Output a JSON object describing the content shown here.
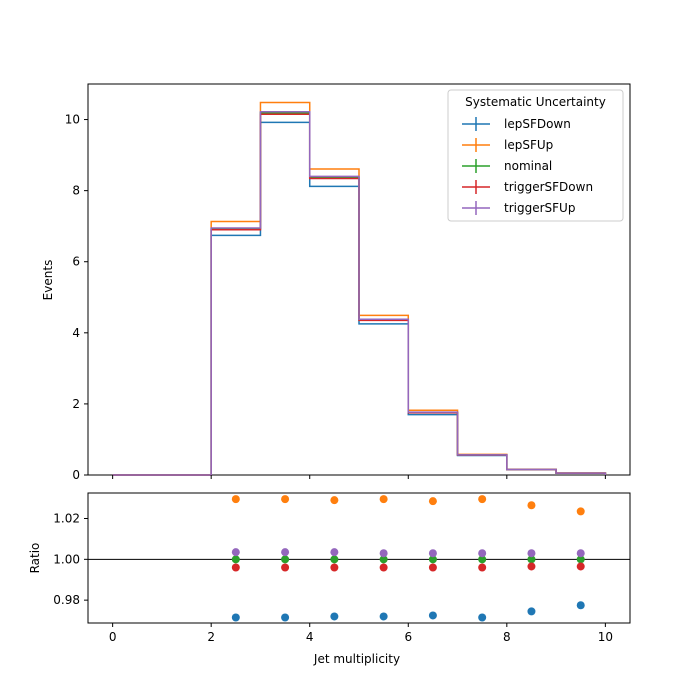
{
  "chart_data": [
    {
      "type": "line",
      "panel": "main",
      "ylabel": "Events",
      "xlim": [
        -0.5,
        10.5
      ],
      "ylim": [
        0,
        11
      ],
      "yticks": [
        0,
        2,
        4,
        6,
        8,
        10
      ],
      "bin_edges": [
        0,
        1,
        2,
        3,
        4,
        5,
        6,
        7,
        8,
        9,
        10
      ],
      "legend": {
        "title": "Systematic Uncertainty",
        "placement": "top-right"
      },
      "series": [
        {
          "name": "lepSFDown",
          "color": "#1f77b4",
          "values": [
            0,
            0,
            6.74,
            9.92,
            8.12,
            4.25,
            1.7,
            0.55,
            0.15,
            0.05
          ]
        },
        {
          "name": "lepSFUp",
          "color": "#ff7f0e",
          "values": [
            0,
            0,
            7.13,
            10.48,
            8.61,
            4.49,
            1.82,
            0.58,
            0.16,
            0.055
          ]
        },
        {
          "name": "nominal",
          "color": "#2ca02c",
          "values": [
            0,
            0,
            6.93,
            10.19,
            8.37,
            4.37,
            1.76,
            0.565,
            0.155,
            0.052
          ]
        },
        {
          "name": "triggerSFDown",
          "color": "#d62728",
          "values": [
            0,
            0,
            6.9,
            10.15,
            8.34,
            4.35,
            1.75,
            0.563,
            0.154,
            0.052
          ]
        },
        {
          "name": "triggerSFUp",
          "color": "#9467bd",
          "values": [
            0,
            0,
            6.95,
            10.22,
            8.4,
            4.38,
            1.77,
            0.567,
            0.156,
            0.052
          ]
        }
      ]
    },
    {
      "type": "scatter",
      "panel": "ratio",
      "xlabel": "Jet multiplicity",
      "ylabel": "Ratio",
      "xlim": [
        -0.5,
        10.5
      ],
      "ylim": [
        0.9688,
        1.0325
      ],
      "xticks": [
        0,
        2,
        4,
        6,
        8,
        10
      ],
      "yticks": [
        0.98,
        1.0,
        1.02
      ],
      "ytick_labels": [
        "0.98",
        "1.00",
        "1.02"
      ],
      "reference_line": 1.0,
      "x": [
        2.5,
        3.5,
        4.5,
        5.5,
        6.5,
        7.5,
        8.5,
        9.5
      ],
      "series": [
        {
          "name": "lepSFDown",
          "color": "#1f77b4",
          "values": [
            0.9715,
            0.9715,
            0.972,
            0.972,
            0.9725,
            0.9715,
            0.9745,
            0.9775
          ]
        },
        {
          "name": "lepSFUp",
          "color": "#ff7f0e",
          "values": [
            1.0295,
            1.0295,
            1.029,
            1.0295,
            1.0285,
            1.0295,
            1.0265,
            1.0235
          ]
        },
        {
          "name": "nominal",
          "color": "#2ca02c",
          "values": [
            1.0,
            1.0,
            1.0,
            1.0,
            1.0,
            1.0,
            1.0,
            1.0
          ]
        },
        {
          "name": "triggerSFDown",
          "color": "#d62728",
          "values": [
            0.996,
            0.996,
            0.996,
            0.996,
            0.996,
            0.996,
            0.9965,
            0.9965
          ]
        },
        {
          "name": "triggerSFUp",
          "color": "#9467bd",
          "values": [
            1.0035,
            1.0035,
            1.0035,
            1.003,
            1.003,
            1.003,
            1.003,
            1.003
          ]
        }
      ]
    }
  ]
}
